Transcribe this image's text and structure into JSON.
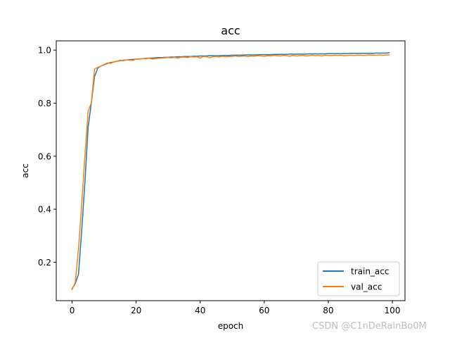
{
  "watermark": "CSDN @C1nDeRainBo0M",
  "chart_data": {
    "type": "line",
    "title": "acc",
    "xlabel": "epoch",
    "ylabel": "acc",
    "xlim": [
      -4.95,
      103.95
    ],
    "ylim": [
      0.055,
      1.035
    ],
    "xticks": [
      0,
      20,
      40,
      60,
      80,
      100
    ],
    "yticks": [
      0.2,
      0.4,
      0.6,
      0.8,
      1.0
    ],
    "xtick_labels": [
      "0",
      "20",
      "40",
      "60",
      "80",
      "100"
    ],
    "ytick_labels": [
      "0.2",
      "0.4",
      "0.6",
      "0.8",
      "1.0"
    ],
    "grid": false,
    "legend_position": "lower right",
    "series": [
      {
        "name": "train_acc",
        "color": "#1f77b4",
        "x": [
          0,
          1,
          2,
          3,
          4,
          5,
          6,
          7,
          8,
          9,
          10,
          11,
          12,
          13,
          14,
          15,
          16,
          17,
          18,
          19,
          20,
          21,
          22,
          23,
          24,
          25,
          26,
          27,
          28,
          29,
          30,
          31,
          32,
          33,
          34,
          35,
          36,
          37,
          38,
          39,
          40,
          41,
          42,
          43,
          44,
          45,
          46,
          47,
          48,
          49,
          50,
          51,
          52,
          53,
          54,
          55,
          56,
          57,
          58,
          59,
          60,
          61,
          62,
          63,
          64,
          65,
          66,
          67,
          68,
          69,
          70,
          71,
          72,
          73,
          74,
          75,
          76,
          77,
          78,
          79,
          80,
          81,
          82,
          83,
          84,
          85,
          86,
          87,
          88,
          89,
          90,
          91,
          92,
          93,
          94,
          95,
          96,
          97,
          98,
          99
        ],
        "values": [
          0.1,
          0.12,
          0.155,
          0.32,
          0.5,
          0.71,
          0.8,
          0.9,
          0.932,
          0.94,
          0.945,
          0.95,
          0.953,
          0.955,
          0.958,
          0.96,
          0.962,
          0.963,
          0.964,
          0.965,
          0.966,
          0.967,
          0.968,
          0.969,
          0.97,
          0.97,
          0.971,
          0.972,
          0.972,
          0.973,
          0.973,
          0.974,
          0.974,
          0.975,
          0.975,
          0.976,
          0.976,
          0.976,
          0.977,
          0.977,
          0.978,
          0.978,
          0.978,
          0.979,
          0.979,
          0.979,
          0.979,
          0.98,
          0.98,
          0.98,
          0.981,
          0.981,
          0.981,
          0.981,
          0.982,
          0.982,
          0.982,
          0.982,
          0.983,
          0.983,
          0.983,
          0.983,
          0.983,
          0.984,
          0.984,
          0.984,
          0.984,
          0.984,
          0.985,
          0.985,
          0.985,
          0.985,
          0.985,
          0.985,
          0.986,
          0.986,
          0.986,
          0.986,
          0.986,
          0.986,
          0.987,
          0.987,
          0.987,
          0.987,
          0.987,
          0.987,
          0.987,
          0.988,
          0.988,
          0.988,
          0.988,
          0.988,
          0.988,
          0.988,
          0.988,
          0.989,
          0.989,
          0.989,
          0.989,
          0.99
        ]
      },
      {
        "name": "val_acc",
        "color": "#ff7f0e",
        "x": [
          0,
          1,
          2,
          3,
          4,
          5,
          6,
          7,
          8,
          9,
          10,
          11,
          12,
          13,
          14,
          15,
          16,
          17,
          18,
          19,
          20,
          21,
          22,
          23,
          24,
          25,
          26,
          27,
          28,
          29,
          30,
          31,
          32,
          33,
          34,
          35,
          36,
          37,
          38,
          39,
          40,
          41,
          42,
          43,
          44,
          45,
          46,
          47,
          48,
          49,
          50,
          51,
          52,
          53,
          54,
          55,
          56,
          57,
          58,
          59,
          60,
          61,
          62,
          63,
          64,
          65,
          66,
          67,
          68,
          69,
          70,
          71,
          72,
          73,
          74,
          75,
          76,
          77,
          78,
          79,
          80,
          81,
          82,
          83,
          84,
          85,
          86,
          87,
          88,
          89,
          90,
          91,
          92,
          93,
          94,
          95,
          96,
          97,
          98,
          99
        ],
        "values": [
          0.097,
          0.125,
          0.25,
          0.42,
          0.6,
          0.77,
          0.8,
          0.928,
          0.935,
          0.94,
          0.946,
          0.952,
          0.95,
          0.955,
          0.958,
          0.962,
          0.96,
          0.963,
          0.962,
          0.961,
          0.966,
          0.966,
          0.968,
          0.967,
          0.97,
          0.966,
          0.968,
          0.969,
          0.97,
          0.971,
          0.972,
          0.971,
          0.973,
          0.97,
          0.973,
          0.974,
          0.972,
          0.975,
          0.974,
          0.975,
          0.97,
          0.976,
          0.975,
          0.971,
          0.975,
          0.976,
          0.974,
          0.977,
          0.975,
          0.976,
          0.976,
          0.978,
          0.976,
          0.977,
          0.978,
          0.976,
          0.978,
          0.977,
          0.979,
          0.978,
          0.977,
          0.979,
          0.978,
          0.98,
          0.979,
          0.978,
          0.98,
          0.979,
          0.977,
          0.98,
          0.978,
          0.979,
          0.98,
          0.978,
          0.979,
          0.981,
          0.979,
          0.98,
          0.978,
          0.981,
          0.98,
          0.979,
          0.981,
          0.98,
          0.981,
          0.979,
          0.98,
          0.981,
          0.98,
          0.981,
          0.981,
          0.98,
          0.981,
          0.982,
          0.981,
          0.981,
          0.982,
          0.981,
          0.982,
          0.982
        ]
      }
    ]
  }
}
